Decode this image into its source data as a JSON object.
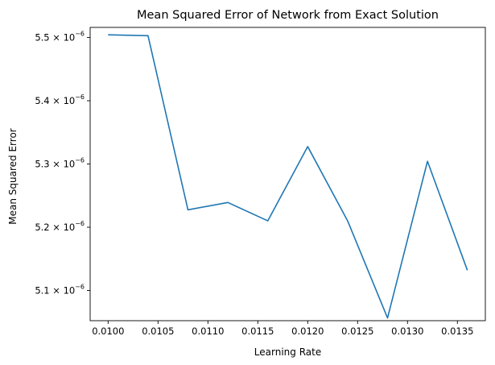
{
  "chart_data": {
    "type": "line",
    "title": "Mean Squared Error of Network from Exact Solution",
    "xlabel": "Learning Rate",
    "ylabel": "Mean Squared Error",
    "grid": false,
    "legend": "none",
    "xlim": [
      0.00982,
      0.01378
    ],
    "ylim": [
      5.0522e-06,
      5.516e-06
    ],
    "xticks": [
      {
        "value": 0.01,
        "label": "0.0100"
      },
      {
        "value": 0.0105,
        "label": "0.0105"
      },
      {
        "value": 0.011,
        "label": "0.0110"
      },
      {
        "value": 0.0115,
        "label": "0.0115"
      },
      {
        "value": 0.012,
        "label": "0.0120"
      },
      {
        "value": 0.0125,
        "label": "0.0125"
      },
      {
        "value": 0.013,
        "label": "0.0130"
      },
      {
        "value": 0.0135,
        "label": "0.0135"
      }
    ],
    "yticks": [
      {
        "value": 5.1e-06,
        "base": "5.1 × 10",
        "exp": "−6"
      },
      {
        "value": 5.2e-06,
        "base": "5.2 × 10",
        "exp": "−6"
      },
      {
        "value": 5.3e-06,
        "base": "5.3 × 10",
        "exp": "−6"
      },
      {
        "value": 5.4e-06,
        "base": "5.4 × 10",
        "exp": "−6"
      },
      {
        "value": 5.5e-06,
        "base": "5.5 × 10",
        "exp": "−6"
      }
    ],
    "series": [
      {
        "color": "#1f77b4",
        "x": [
          0.01,
          0.0104,
          0.0108,
          0.0112,
          0.0116,
          0.012,
          0.0124,
          0.0128,
          0.0132,
          0.0136
        ],
        "y": [
          5.5043e-06,
          5.5029e-06,
          5.2275e-06,
          5.2391e-06,
          5.2101e-06,
          5.3275e-06,
          5.2101e-06,
          5.0565e-06,
          5.3043e-06,
          5.1319e-06
        ]
      }
    ]
  }
}
